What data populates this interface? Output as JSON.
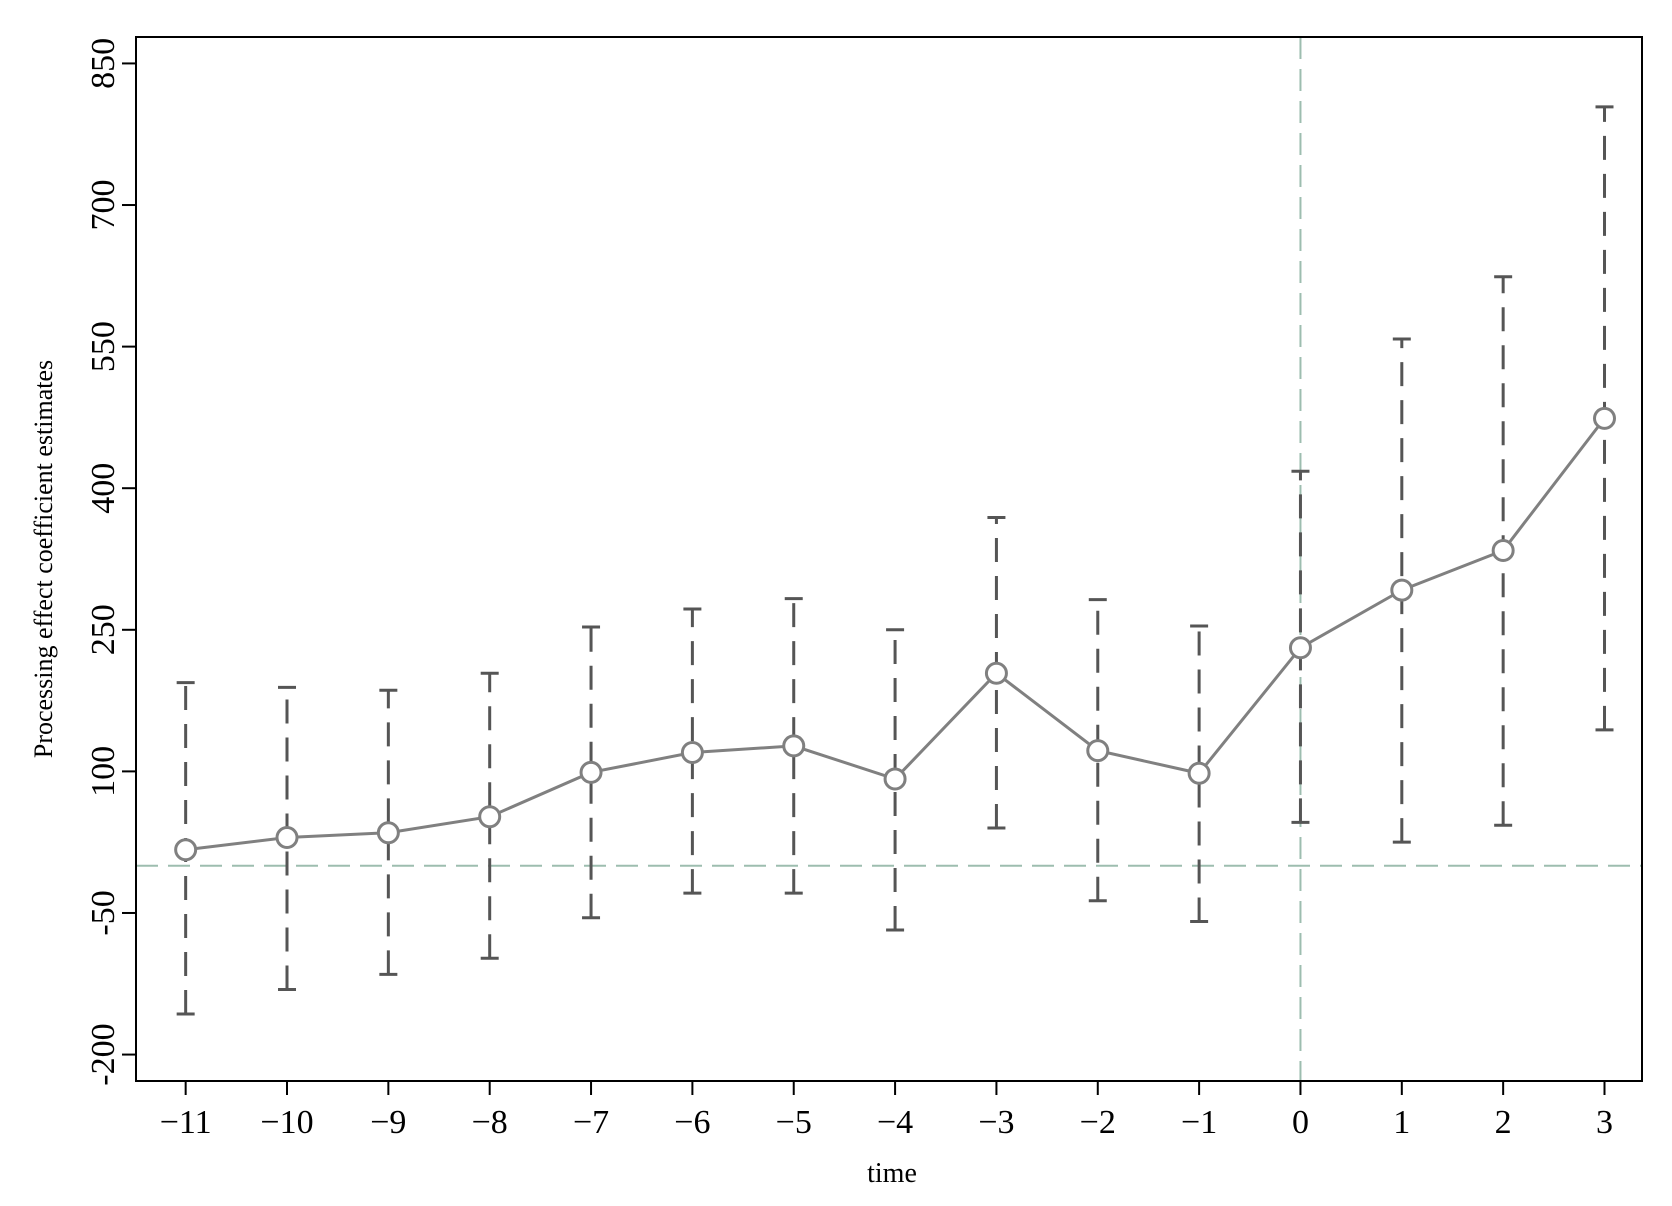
{
  "chart_data": {
    "type": "errorbar-line",
    "y_label": "Processing effect coefficient estimates",
    "x_label": "time",
    "x": [
      -11,
      -10,
      -9,
      -8,
      -7,
      -6,
      -5,
      -4,
      -3,
      -2,
      -1,
      0,
      1,
      2,
      3
    ],
    "values": [
      17,
      30,
      35,
      52,
      99,
      120,
      127,
      92,
      204,
      122,
      98,
      231,
      292,
      334,
      474
    ],
    "lower": [
      -157,
      -131,
      -115,
      -98,
      -55,
      -29,
      -29,
      -68,
      40,
      -37,
      -59,
      46,
      25,
      43,
      144
    ],
    "upper": [
      194,
      189,
      186,
      204,
      253,
      272,
      283,
      250,
      369,
      282,
      254,
      418,
      558,
      624,
      804
    ],
    "color": "#808080",
    "errorbar_color": "#555555",
    "reference_color": "#9dbdaf",
    "hline": 0,
    "vline": 0,
    "xlim": [
      -11.49,
      3.37
    ],
    "ylim": [
      -228,
      878
    ],
    "xticks": [
      {
        "value": -11,
        "label": "−11"
      },
      {
        "value": -10,
        "label": "−10"
      },
      {
        "value": -9,
        "label": "−9"
      },
      {
        "value": -8,
        "label": "−8"
      },
      {
        "value": -7,
        "label": "−7"
      },
      {
        "value": -6,
        "label": "−6"
      },
      {
        "value": -5,
        "label": "−5"
      },
      {
        "value": -4,
        "label": "−4"
      },
      {
        "value": -3,
        "label": "−3"
      },
      {
        "value": -2,
        "label": "−2"
      },
      {
        "value": -1,
        "label": "−1"
      },
      0,
      1,
      2,
      3
    ],
    "yticks": [
      -200,
      -50,
      100,
      250,
      400,
      550,
      700,
      850
    ]
  }
}
